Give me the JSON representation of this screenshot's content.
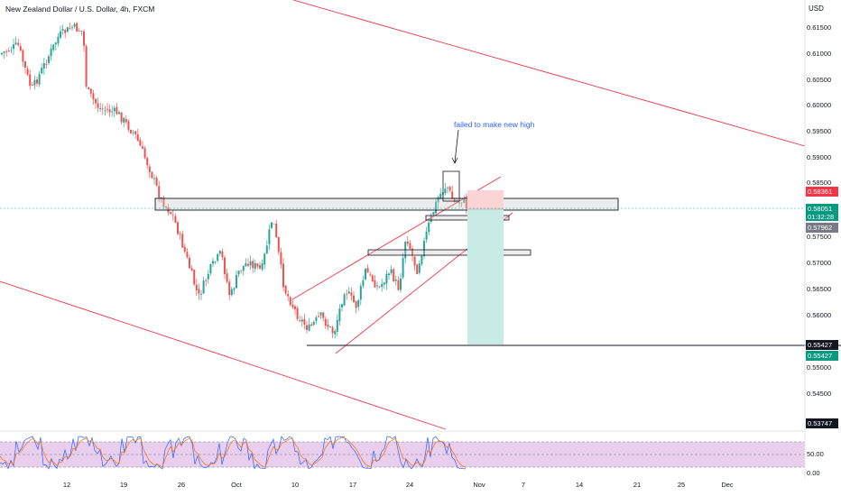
{
  "header": {
    "title": "New Zealand Dollar / U.S. Dollar, 4h, FXCM",
    "currency": "USD"
  },
  "annotation": {
    "text": "failed to make new high"
  },
  "price_axis": {
    "labels": [
      "0.61500",
      "0.61000",
      "0.60500",
      "0.60000",
      "0.59500",
      "0.59000",
      "0.58500",
      "0.57500",
      "0.57000",
      "0.56500",
      "0.56000",
      "0.55000",
      "0.54500"
    ],
    "tags": {
      "red": "0.58361",
      "green_price": "0.58051",
      "green_timer": "01:32:28",
      "gray": "0.57962",
      "black_mid": "0.55427",
      "green_low": "0.55427",
      "black_low": "0.53747"
    }
  },
  "rsi_axis": {
    "labels": [
      "50.00",
      "0.00"
    ]
  },
  "time_axis": {
    "labels": [
      "12",
      "19",
      "26",
      "Oct",
      "10",
      "17",
      "24",
      "Nov",
      "7",
      "14",
      "21",
      "25",
      "Dec"
    ]
  },
  "colors": {
    "up": "#26a69a",
    "down": "#ef5350",
    "channel": "#f23645",
    "rsi_bg": "#e1bee7",
    "tp": "#c8ebe6",
    "sl": "#fbd5d5"
  },
  "chart_data": {
    "type": "candlestick",
    "symbol": "NZDUSD",
    "timeframe": "4h",
    "y_range": [
      0.5375,
      0.6175
    ],
    "reference_levels": [
      0.58361,
      0.58051,
      0.57962,
      0.55427,
      0.53747
    ]
  }
}
